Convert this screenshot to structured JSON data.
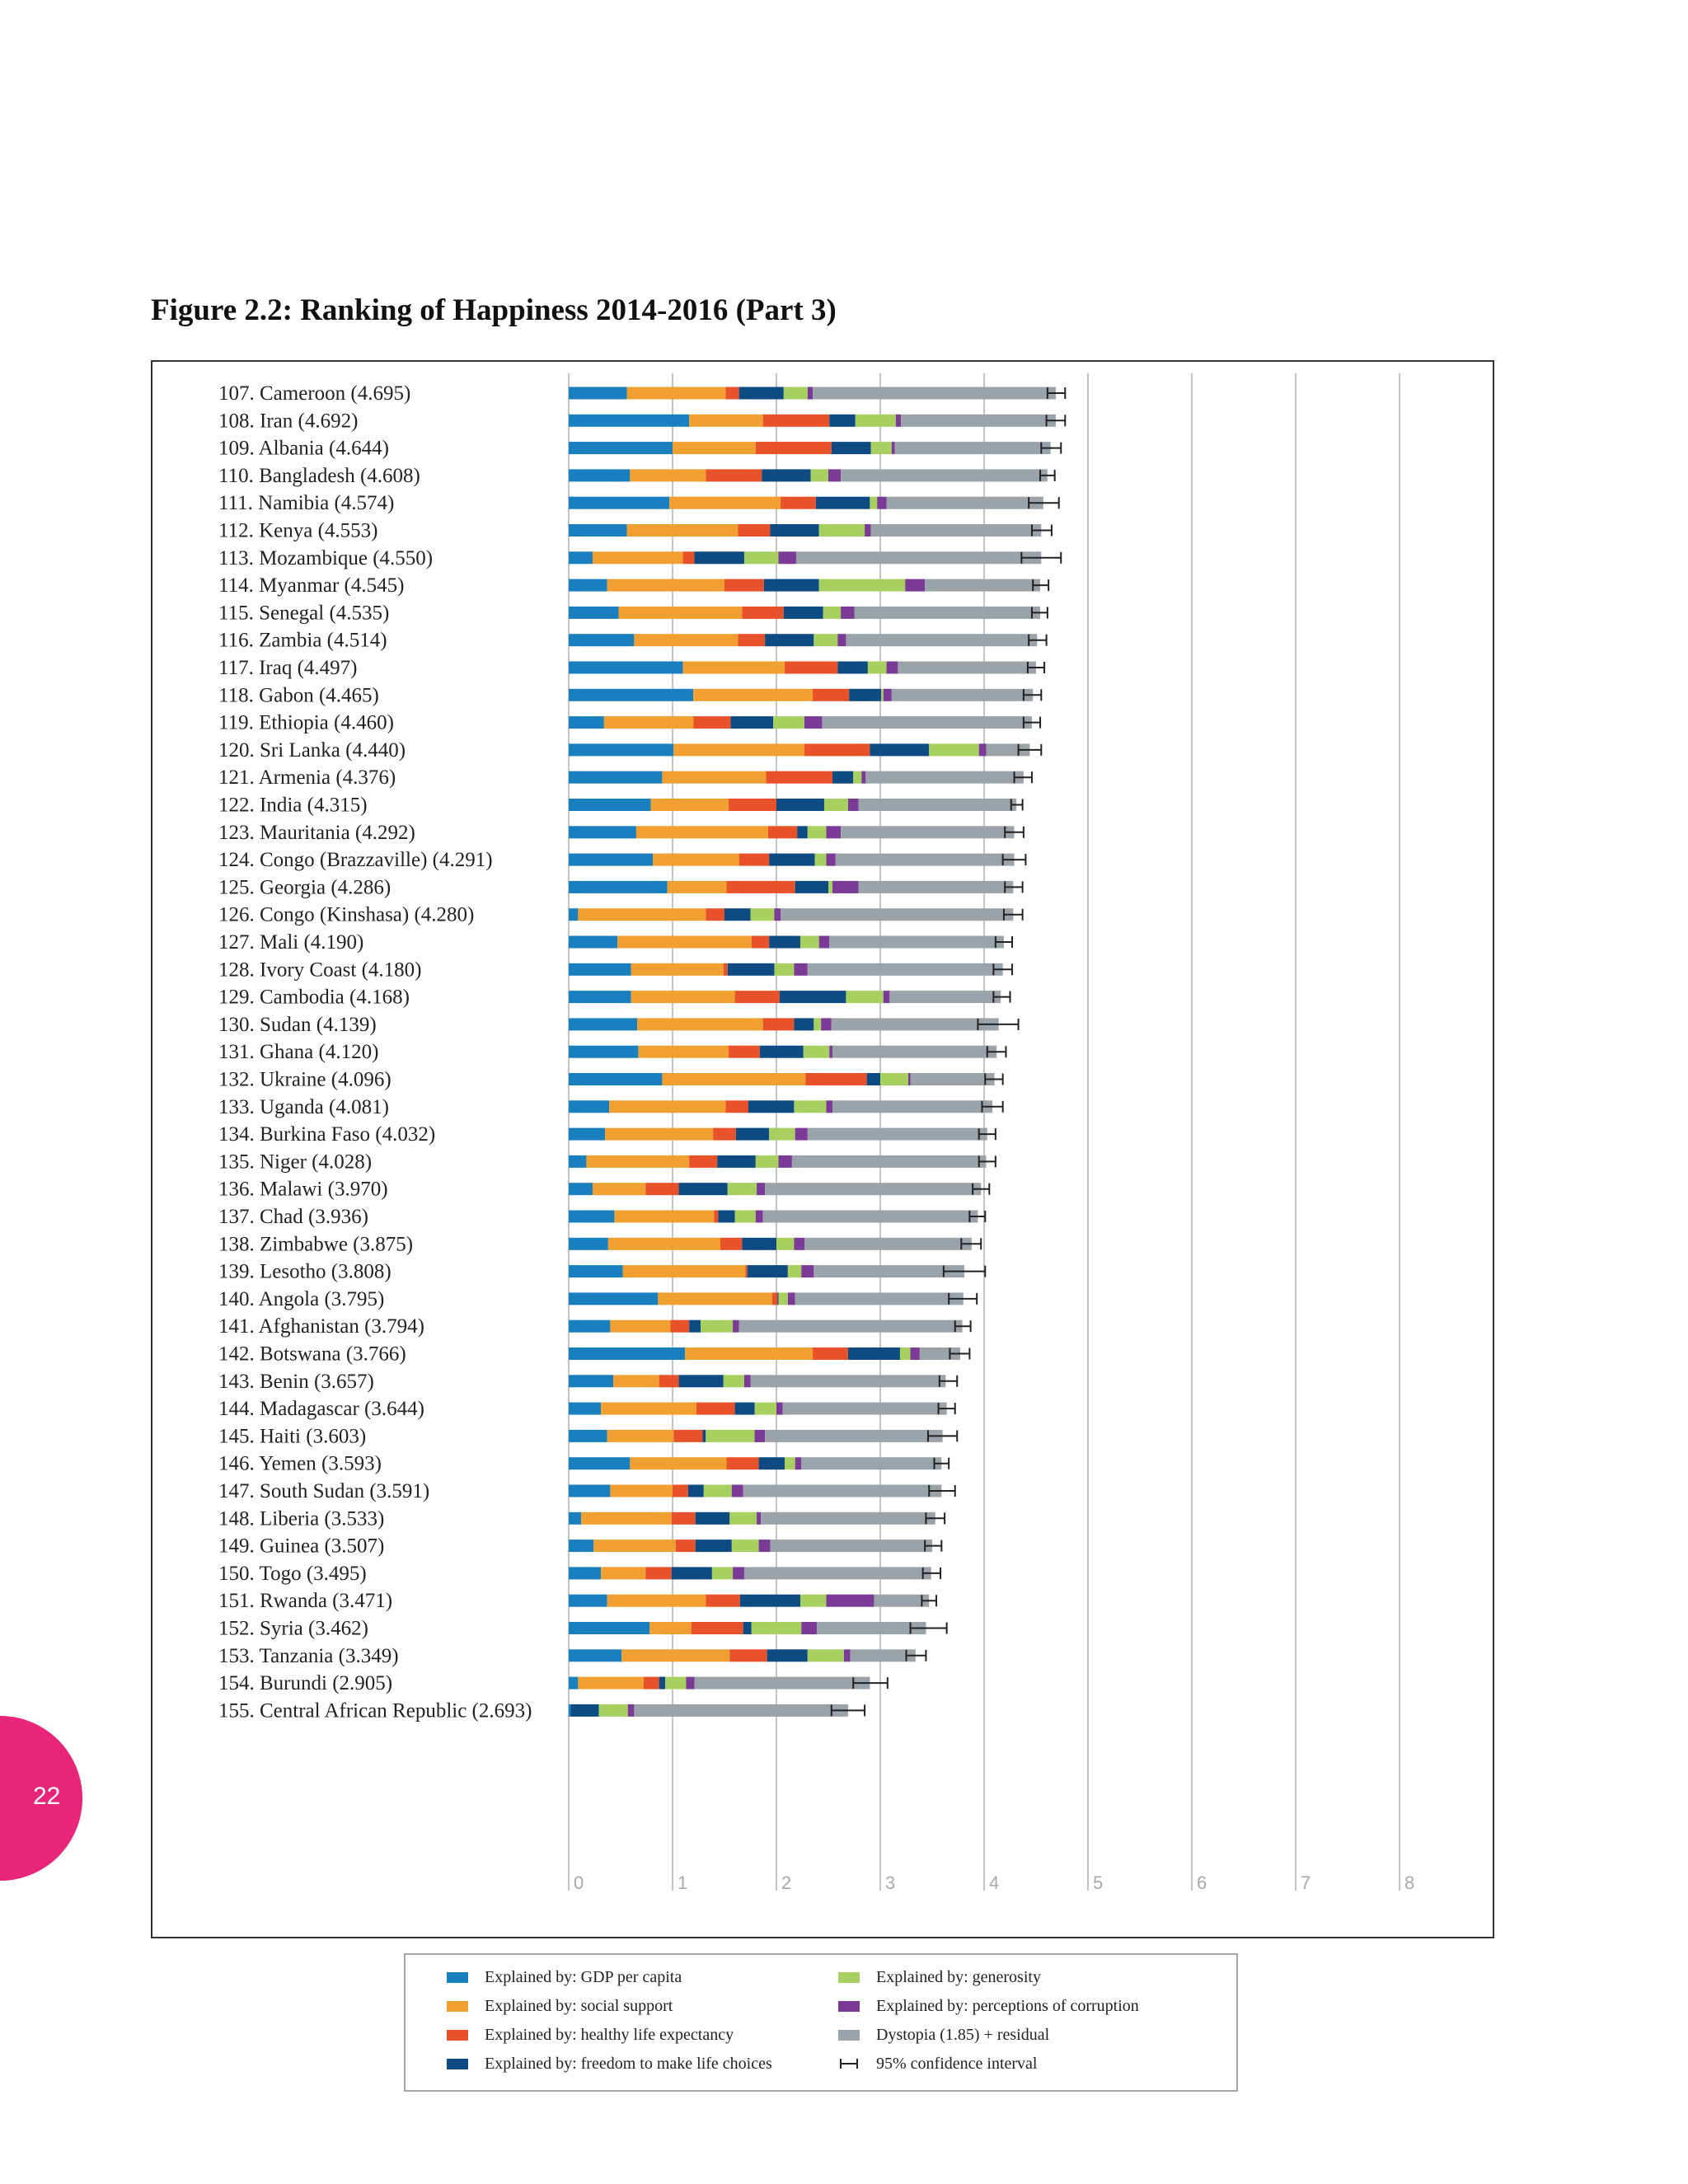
{
  "page": {
    "title": "Figure 2.2: Ranking of Happiness 2014-2016 (Part 3)",
    "page_number": "22"
  },
  "colors": {
    "gdp": "#1a7fbf",
    "social": "#f0a030",
    "health": "#e8522a",
    "freedom": "#0e4b82",
    "generosity": "#a8d060",
    "corruption": "#7a3a96",
    "dystopia": "#9aa3aa",
    "ci": "#222222"
  },
  "legend": {
    "items": [
      {
        "key": "gdp",
        "label": "Explained by: GDP per capita"
      },
      {
        "key": "social",
        "label": "Explained by: social support"
      },
      {
        "key": "health",
        "label": "Explained by: healthy life expectancy"
      },
      {
        "key": "freedom",
        "label": "Explained by: freedom to make life choices"
      },
      {
        "key": "generosity",
        "label": "Explained by: generosity"
      },
      {
        "key": "corruption",
        "label": "Explained by: perceptions of corruption"
      },
      {
        "key": "dystopia",
        "label": "Dystopia (1.85) + residual"
      },
      {
        "key": "ci",
        "label": "95% confidence interval"
      }
    ]
  },
  "chart_data": {
    "type": "bar",
    "orientation": "horizontal",
    "stacked": true,
    "title": "Figure 2.2: Ranking of Happiness 2014-2016 (Part 3)",
    "xlim": [
      0,
      8
    ],
    "xticks": [
      0,
      1,
      2,
      3,
      4,
      5,
      6,
      7,
      8
    ],
    "grid": true,
    "legend_position": "bottom",
    "series_order": [
      "gdp",
      "social",
      "health",
      "freedom",
      "generosity",
      "corruption",
      "dystopia"
    ],
    "rows": [
      {
        "rank": "107.",
        "country": "Cameroon",
        "score": "4.695",
        "label": "107. Cameroon (4.695)",
        "v": [
          0.56,
          0.95,
          0.13,
          0.43,
          0.23,
          0.05,
          2.34
        ],
        "ci": [
          4.61,
          4.78
        ]
      },
      {
        "rank": "108.",
        "country": "Iran",
        "score": "4.692",
        "label": "108. Iran (4.692)",
        "v": [
          1.16,
          0.71,
          0.64,
          0.25,
          0.39,
          0.05,
          1.49
        ],
        "ci": [
          4.6,
          4.78
        ]
      },
      {
        "rank": "109.",
        "country": "Albania",
        "score": "4.644",
        "label": "109. Albania (4.644)",
        "v": [
          1.0,
          0.8,
          0.73,
          0.38,
          0.2,
          0.03,
          1.5
        ],
        "ci": [
          4.55,
          4.74
        ]
      },
      {
        "rank": "110.",
        "country": "Bangladesh",
        "score": "4.608",
        "label": "110. Bangladesh (4.608)",
        "v": [
          0.59,
          0.73,
          0.54,
          0.47,
          0.17,
          0.12,
          1.99
        ],
        "ci": [
          4.54,
          4.68
        ]
      },
      {
        "rank": "111.",
        "country": "Namibia",
        "score": "4.574",
        "label": "111. Namibia (4.574)",
        "v": [
          0.97,
          1.07,
          0.34,
          0.52,
          0.07,
          0.09,
          1.51
        ],
        "ci": [
          4.43,
          4.72
        ]
      },
      {
        "rank": "112.",
        "country": "Kenya",
        "score": "4.553",
        "label": "112. Kenya (4.553)",
        "v": [
          0.56,
          1.07,
          0.31,
          0.47,
          0.44,
          0.06,
          1.64
        ],
        "ci": [
          4.46,
          4.65
        ]
      },
      {
        "rank": "113.",
        "country": "Mozambique",
        "score": "4.550",
        "label": "113. Mozambique (4.550)",
        "v": [
          0.23,
          0.87,
          0.11,
          0.48,
          0.33,
          0.17,
          2.36
        ],
        "ci": [
          4.36,
          4.74
        ]
      },
      {
        "rank": "114.",
        "country": "Myanmar",
        "score": "4.545",
        "label": "114. Myanmar (4.545)",
        "v": [
          0.37,
          1.13,
          0.38,
          0.53,
          0.83,
          0.19,
          1.11
        ],
        "ci": [
          4.47,
          4.62
        ]
      },
      {
        "rank": "115.",
        "country": "Senegal",
        "score": "4.535",
        "label": "115. Senegal (4.535)",
        "v": [
          0.48,
          1.19,
          0.4,
          0.38,
          0.17,
          0.13,
          1.79
        ],
        "ci": [
          4.46,
          4.61
        ]
      },
      {
        "rank": "116.",
        "country": "Zambia",
        "score": "4.514",
        "label": "116. Zambia (4.514)",
        "v": [
          0.63,
          1.0,
          0.26,
          0.47,
          0.23,
          0.08,
          1.84
        ],
        "ci": [
          4.43,
          4.6
        ]
      },
      {
        "rank": "117.",
        "country": "Iraq",
        "score": "4.497",
        "label": "117. Iraq (4.497)",
        "v": [
          1.1,
          0.98,
          0.51,
          0.29,
          0.18,
          0.11,
          1.33
        ],
        "ci": [
          4.42,
          4.58
        ]
      },
      {
        "rank": "118.",
        "country": "Gabon",
        "score": "4.465",
        "label": "118. Gabon (4.465)",
        "v": [
          1.2,
          1.15,
          0.35,
          0.31,
          0.02,
          0.08,
          1.36
        ],
        "ci": [
          4.38,
          4.55
        ]
      },
      {
        "rank": "119.",
        "country": "Ethiopia",
        "score": "4.460",
        "label": "119. Ethiopia (4.460)",
        "v": [
          0.34,
          0.86,
          0.36,
          0.41,
          0.3,
          0.17,
          2.02
        ],
        "ci": [
          4.38,
          4.54
        ]
      },
      {
        "rank": "120.",
        "country": "Sri Lanka",
        "score": "4.440",
        "label": "120. Sri Lanka (4.440)",
        "v": [
          1.01,
          1.26,
          0.63,
          0.57,
          0.48,
          0.07,
          0.42
        ],
        "ci": [
          4.33,
          4.55
        ]
      },
      {
        "rank": "121.",
        "country": "Armenia",
        "score": "4.376",
        "label": "121. Armenia (4.376)",
        "v": [
          0.9,
          1.0,
          0.64,
          0.2,
          0.08,
          0.04,
          1.52
        ],
        "ci": [
          4.29,
          4.46
        ]
      },
      {
        "rank": "122.",
        "country": "India",
        "score": "4.315",
        "label": "122. India (4.315)",
        "v": [
          0.79,
          0.75,
          0.46,
          0.46,
          0.23,
          0.1,
          1.52
        ],
        "ci": [
          4.26,
          4.37
        ]
      },
      {
        "rank": "123.",
        "country": "Mauritania",
        "score": "4.292",
        "label": "123. Mauritania (4.292)",
        "v": [
          0.65,
          1.27,
          0.28,
          0.1,
          0.18,
          0.14,
          1.67
        ],
        "ci": [
          4.2,
          4.38
        ]
      },
      {
        "rank": "124.",
        "country": "Congo (Brazzaville)",
        "score": "4.291",
        "label": "124. Congo (Brazzaville) (4.291)",
        "v": [
          0.81,
          0.83,
          0.29,
          0.44,
          0.11,
          0.09,
          1.72
        ],
        "ci": [
          4.18,
          4.4
        ]
      },
      {
        "rank": "125.",
        "country": "Georgia",
        "score": "4.286",
        "label": "125. Georgia (4.286)",
        "v": [
          0.95,
          0.57,
          0.66,
          0.32,
          0.04,
          0.25,
          1.49
        ],
        "ci": [
          4.2,
          4.37
        ]
      },
      {
        "rank": "126.",
        "country": "Congo (Kinshasa)",
        "score": "4.280",
        "label": "126. Congo (Kinshasa) (4.280)",
        "v": [
          0.09,
          1.23,
          0.18,
          0.25,
          0.23,
          0.06,
          2.24
        ],
        "ci": [
          4.19,
          4.37
        ]
      },
      {
        "rank": "127.",
        "country": "Mali",
        "score": "4.190",
        "label": "127. Mali (4.190)",
        "v": [
          0.47,
          1.29,
          0.17,
          0.3,
          0.18,
          0.1,
          1.68
        ],
        "ci": [
          4.11,
          4.27
        ]
      },
      {
        "rank": "128.",
        "country": "Ivory Coast",
        "score": "4.180",
        "label": "128. Ivory Coast (4.180)",
        "v": [
          0.6,
          0.89,
          0.04,
          0.45,
          0.19,
          0.13,
          1.88
        ],
        "ci": [
          4.09,
          4.27
        ]
      },
      {
        "rank": "129.",
        "country": "Cambodia",
        "score": "4.168",
        "label": "129. Cambodia (4.168)",
        "v": [
          0.6,
          1.0,
          0.43,
          0.64,
          0.36,
          0.06,
          1.07
        ],
        "ci": [
          4.09,
          4.25
        ]
      },
      {
        "rank": "130.",
        "country": "Sudan",
        "score": "4.139",
        "label": "130. Sudan (4.139)",
        "v": [
          0.66,
          1.21,
          0.3,
          0.19,
          0.07,
          0.1,
          1.61
        ],
        "ci": [
          3.94,
          4.33
        ]
      },
      {
        "rank": "131.",
        "country": "Ghana",
        "score": "4.120",
        "label": "131. Ghana (4.120)",
        "v": [
          0.67,
          0.87,
          0.3,
          0.42,
          0.25,
          0.03,
          1.58
        ],
        "ci": [
          4.03,
          4.21
        ]
      },
      {
        "rank": "132.",
        "country": "Ukraine",
        "score": "4.096",
        "label": "132. Ukraine (4.096)",
        "v": [
          0.9,
          1.38,
          0.59,
          0.13,
          0.27,
          0.02,
          0.81
        ],
        "ci": [
          4.01,
          4.18
        ]
      },
      {
        "rank": "133.",
        "country": "Uganda",
        "score": "4.081",
        "label": "133. Uganda (4.081)",
        "v": [
          0.39,
          1.12,
          0.22,
          0.44,
          0.31,
          0.06,
          1.54
        ],
        "ci": [
          3.98,
          4.18
        ]
      },
      {
        "rank": "134.",
        "country": "Burkina Faso",
        "score": "4.032",
        "label": "134. Burkina Faso (4.032)",
        "v": [
          0.35,
          1.04,
          0.22,
          0.32,
          0.25,
          0.12,
          1.73
        ],
        "ci": [
          3.95,
          4.11
        ]
      },
      {
        "rank": "135.",
        "country": "Niger",
        "score": "4.028",
        "label": "135. Niger (4.028)",
        "v": [
          0.17,
          0.99,
          0.27,
          0.37,
          0.22,
          0.13,
          1.87
        ],
        "ci": [
          3.95,
          4.11
        ]
      },
      {
        "rank": "136.",
        "country": "Malawi",
        "score": "3.970",
        "label": "136. Malawi (3.970)",
        "v": [
          0.23,
          0.51,
          0.32,
          0.47,
          0.28,
          0.08,
          2.08
        ],
        "ci": [
          3.89,
          4.05
        ]
      },
      {
        "rank": "137.",
        "country": "Chad",
        "score": "3.936",
        "label": "137. Chad (3.936)",
        "v": [
          0.44,
          0.96,
          0.04,
          0.16,
          0.2,
          0.07,
          2.07
        ],
        "ci": [
          3.86,
          4.01
        ]
      },
      {
        "rank": "138.",
        "country": "Zimbabwe",
        "score": "3.875",
        "label": "138. Zimbabwe (3.875)",
        "v": [
          0.38,
          1.08,
          0.21,
          0.33,
          0.17,
          0.1,
          1.61
        ],
        "ci": [
          3.78,
          3.97
        ]
      },
      {
        "rank": "139.",
        "country": "Lesotho",
        "score": "3.808",
        "label": "139. Lesotho (3.808)",
        "v": [
          0.52,
          1.18,
          0.02,
          0.39,
          0.13,
          0.12,
          1.45
        ],
        "ci": [
          3.61,
          4.01
        ]
      },
      {
        "rank": "140.",
        "country": "Angola",
        "score": "3.795",
        "label": "140. Angola (3.795)",
        "v": [
          0.86,
          1.1,
          0.05,
          0.01,
          0.09,
          0.07,
          1.62
        ],
        "ci": [
          3.66,
          3.93
        ]
      },
      {
        "rank": "141.",
        "country": "Afghanistan",
        "score": "3.794",
        "label": "141. Afghanistan (3.794)",
        "v": [
          0.4,
          0.58,
          0.18,
          0.11,
          0.31,
          0.06,
          2.15
        ],
        "ci": [
          3.72,
          3.87
        ]
      },
      {
        "rank": "142.",
        "country": "Botswana",
        "score": "3.766",
        "label": "142. Botswana (3.766)",
        "v": [
          1.12,
          1.23,
          0.34,
          0.5,
          0.1,
          0.09,
          0.39
        ],
        "ci": [
          3.67,
          3.86
        ]
      },
      {
        "rank": "143.",
        "country": "Benin",
        "score": "3.657",
        "label": "143. Benin (3.657)",
        "v": [
          0.43,
          0.44,
          0.19,
          0.43,
          0.2,
          0.06,
          1.88
        ],
        "ci": [
          3.57,
          3.74
        ]
      },
      {
        "rank": "144.",
        "country": "Madagascar",
        "score": "3.644",
        "label": "144. Madagascar (3.644)",
        "v": [
          0.31,
          0.92,
          0.37,
          0.19,
          0.21,
          0.06,
          1.58
        ],
        "ci": [
          3.56,
          3.72
        ]
      },
      {
        "rank": "145.",
        "country": "Haiti",
        "score": "3.603",
        "label": "145. Haiti (3.603)",
        "v": [
          0.37,
          0.64,
          0.28,
          0.03,
          0.47,
          0.1,
          1.71
        ],
        "ci": [
          3.46,
          3.74
        ]
      },
      {
        "rank": "146.",
        "country": "Yemen",
        "score": "3.593",
        "label": "146. Yemen (3.593)",
        "v": [
          0.59,
          0.93,
          0.31,
          0.25,
          0.1,
          0.06,
          1.35
        ],
        "ci": [
          3.52,
          3.66
        ]
      },
      {
        "rank": "147.",
        "country": "South Sudan",
        "score": "3.591",
        "label": "147. South Sudan (3.591)",
        "v": [
          0.4,
          0.6,
          0.15,
          0.15,
          0.27,
          0.11,
          1.91
        ],
        "ci": [
          3.47,
          3.72
        ]
      },
      {
        "rank": "148.",
        "country": "Liberia",
        "score": "3.533",
        "label": "148. Liberia (3.533)",
        "v": [
          0.12,
          0.87,
          0.23,
          0.33,
          0.26,
          0.04,
          1.68
        ],
        "ci": [
          3.44,
          3.62
        ]
      },
      {
        "rank": "149.",
        "country": "Guinea",
        "score": "3.507",
        "label": "149. Guinea (3.507)",
        "v": [
          0.24,
          0.79,
          0.19,
          0.35,
          0.26,
          0.11,
          1.56
        ],
        "ci": [
          3.43,
          3.59
        ]
      },
      {
        "rank": "150.",
        "country": "Togo",
        "score": "3.495",
        "label": "150. Togo (3.495)",
        "v": [
          0.31,
          0.43,
          0.25,
          0.39,
          0.2,
          0.11,
          1.8
        ],
        "ci": [
          3.41,
          3.58
        ]
      },
      {
        "rank": "151.",
        "country": "Rwanda",
        "score": "3.471",
        "label": "151. Rwanda (3.471)",
        "v": [
          0.37,
          0.95,
          0.33,
          0.58,
          0.25,
          0.46,
          0.53
        ],
        "ci": [
          3.4,
          3.54
        ]
      },
      {
        "rank": "152.",
        "country": "Syria",
        "score": "3.462",
        "label": "152. Syria (3.462)",
        "v": [
          0.78,
          0.4,
          0.5,
          0.08,
          0.48,
          0.15,
          1.05
        ],
        "ci": [
          3.29,
          3.64
        ]
      },
      {
        "rank": "153.",
        "country": "Tanzania",
        "score": "3.349",
        "label": "153. Tanzania (3.349)",
        "v": [
          0.51,
          1.04,
          0.36,
          0.39,
          0.35,
          0.06,
          0.63
        ],
        "ci": [
          3.25,
          3.44
        ]
      },
      {
        "rank": "154.",
        "country": "Burundi",
        "score": "2.905",
        "label": "154. Burundi (2.905)",
        "v": [
          0.09,
          0.63,
          0.15,
          0.06,
          0.2,
          0.08,
          1.69
        ],
        "ci": [
          2.74,
          3.07
        ]
      },
      {
        "rank": "155.",
        "country": "Central African Republic",
        "score": "2.693",
        "label": "155. Central African Republic (2.693)",
        "v": [
          0.02,
          0.0,
          0.0,
          0.27,
          0.28,
          0.06,
          2.06
        ],
        "ci": [
          2.53,
          2.85
        ]
      }
    ]
  }
}
